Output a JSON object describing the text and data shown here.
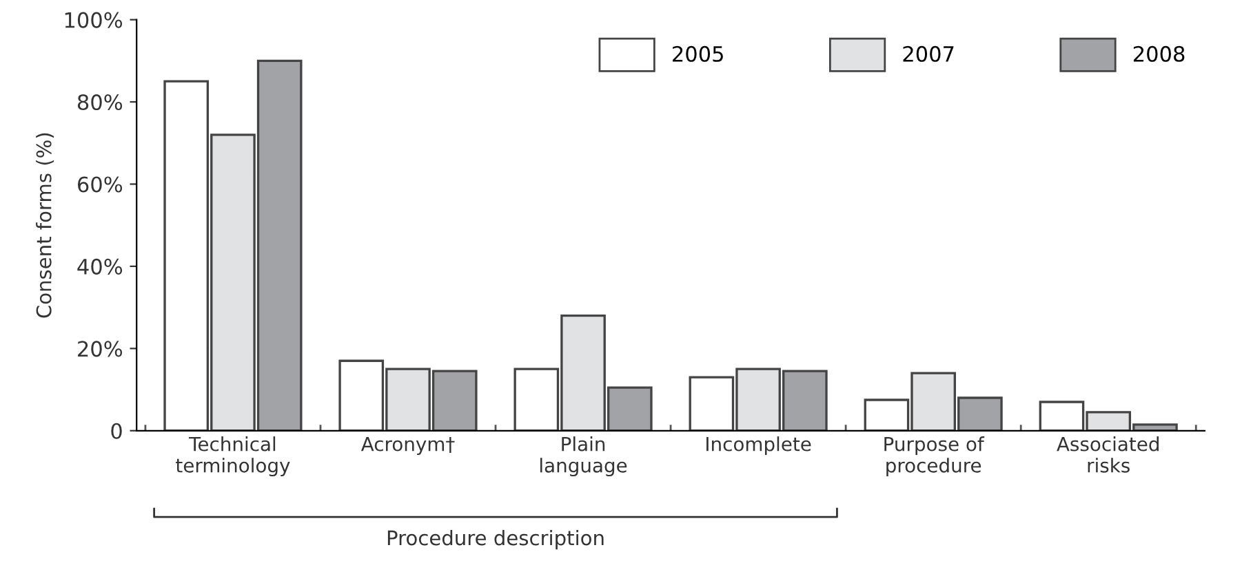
{
  "chart_data": {
    "type": "bar",
    "ylabel": "Consent forms (%)",
    "categories": [
      "Technical\nterminology",
      "Acronym†",
      "Plain\nlanguage",
      "Incomplete",
      "Purpose of\nprocedure",
      "Associated\nrisks"
    ],
    "series": [
      {
        "name": "2005",
        "color": "#ffffff",
        "values": [
          85,
          17,
          15,
          13,
          7.5,
          7
        ]
      },
      {
        "name": "2007",
        "color": "#e1e2e4",
        "values": [
          72,
          15,
          28,
          15,
          14,
          4.5
        ]
      },
      {
        "name": "2008",
        "color": "#a2a3a7",
        "values": [
          90,
          14.5,
          10.5,
          14.5,
          8,
          1.5
        ]
      }
    ],
    "ylim": [
      0,
      100
    ],
    "yticks": [
      {
        "value": 0,
        "label": "0"
      },
      {
        "value": 20,
        "label": "20%"
      },
      {
        "value": 40,
        "label": "40%"
      },
      {
        "value": 60,
        "label": "60%"
      },
      {
        "value": 80,
        "label": "80%"
      },
      {
        "value": 100,
        "label": "100%"
      }
    ],
    "annotations": [
      "Procedure description"
    ],
    "grid": false,
    "legend": "top right"
  }
}
